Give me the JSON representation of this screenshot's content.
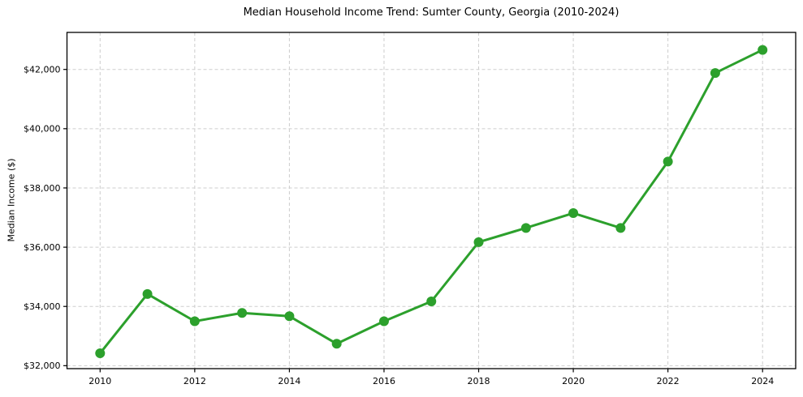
{
  "figure": {
    "title": "Median Household Income Trend: Sumter County, Georgia (2010-2024)"
  },
  "chart_data": {
    "type": "line",
    "title": "Median Household Income Trend: Sumter County, Georgia (2010-2024)",
    "xlabel": "",
    "ylabel": "Median Income ($)",
    "x": [
      2010,
      2011,
      2012,
      2013,
      2014,
      2015,
      2016,
      2017,
      2018,
      2019,
      2020,
      2021,
      2022,
      2023,
      2024
    ],
    "series": [
      {
        "name": "Median Household Income",
        "values": [
          32420,
          34420,
          33500,
          33780,
          33670,
          32740,
          33500,
          34170,
          36170,
          36650,
          37150,
          36650,
          38890,
          41880,
          42660
        ]
      }
    ],
    "xticks": [
      2010,
      2012,
      2014,
      2016,
      2018,
      2020,
      2022,
      2024
    ],
    "yticks": [
      32000,
      34000,
      36000,
      38000,
      40000,
      42000
    ],
    "ytick_labels": [
      "$32,000",
      "$34,000",
      "$36,000",
      "$38,000",
      "$40,000",
      "$42,000"
    ],
    "xlim": [
      2009.3,
      2024.7
    ],
    "ylim": [
      31900,
      43250
    ],
    "grid": true,
    "grid_style": "dashed",
    "legend_position": "none",
    "colors": {
      "line": "#2ca02c",
      "marker": "#2ca02c",
      "grid": "#cdcdcd",
      "spine": "#000000",
      "background": "#ffffff"
    },
    "marker": "circle",
    "marker_radius": 6,
    "line_width": 3
  }
}
